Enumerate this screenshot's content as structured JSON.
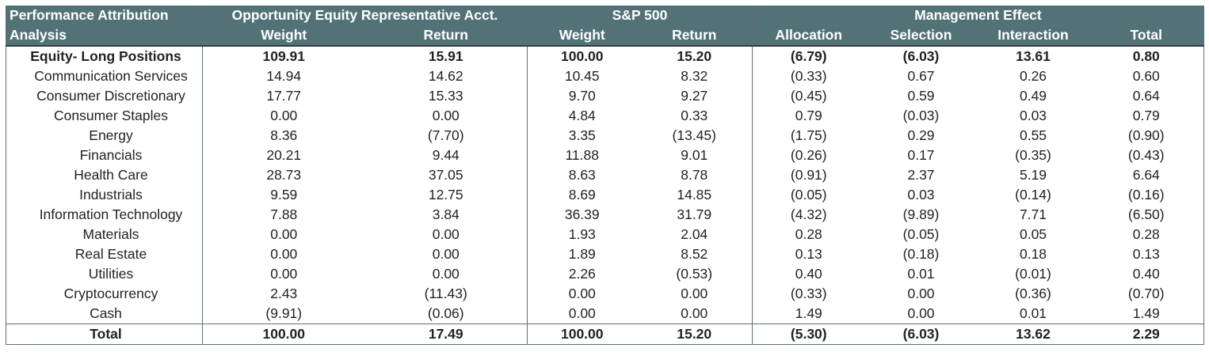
{
  "header": {
    "title_line1": "Performance Attribution",
    "title_line2": "Analysis",
    "group_account": "Opportunity Equity Representative Acct.",
    "group_index": "S&P 500",
    "group_effect": "Management Effect",
    "acct_weight": "Weight",
    "acct_return": "Return",
    "idx_weight": "Weight",
    "idx_return": "Return",
    "allocation": "Allocation",
    "selection": "Selection",
    "interaction": "Interaction",
    "total": "Total"
  },
  "rows": [
    {
      "label": "Equity- Long Positions",
      "cells": [
        "109.91",
        "15.91",
        "100.00",
        "15.20",
        "(6.79)",
        "(6.03)",
        "13.61",
        "0.80"
      ]
    },
    {
      "label": "Communication Services",
      "cells": [
        "14.94",
        "14.62",
        "10.45",
        "8.32",
        "(0.33)",
        "0.67",
        "0.26",
        "0.60"
      ]
    },
    {
      "label": "Consumer Discretionary",
      "cells": [
        "17.77",
        "15.33",
        "9.70",
        "9.27",
        "(0.45)",
        "0.59",
        "0.49",
        "0.64"
      ]
    },
    {
      "label": "Consumer Staples",
      "cells": [
        "0.00",
        "0.00",
        "4.84",
        "0.33",
        "0.79",
        "(0.03)",
        "0.03",
        "0.79"
      ]
    },
    {
      "label": "Energy",
      "cells": [
        "8.36",
        "(7.70)",
        "3.35",
        "(13.45)",
        "(1.75)",
        "0.29",
        "0.55",
        "(0.90)"
      ]
    },
    {
      "label": "Financials",
      "cells": [
        "20.21",
        "9.44",
        "11.88",
        "9.01",
        "(0.26)",
        "0.17",
        "(0.35)",
        "(0.43)"
      ]
    },
    {
      "label": "Health Care",
      "cells": [
        "28.73",
        "37.05",
        "8.63",
        "8.78",
        "(0.91)",
        "2.37",
        "5.19",
        "6.64"
      ]
    },
    {
      "label": "Industrials",
      "cells": [
        "9.59",
        "12.75",
        "8.69",
        "14.85",
        "(0.05)",
        "0.03",
        "(0.14)",
        "(0.16)"
      ]
    },
    {
      "label": "Information Technology",
      "cells": [
        "7.88",
        "3.84",
        "36.39",
        "31.79",
        "(4.32)",
        "(9.89)",
        "7.71",
        "(6.50)"
      ]
    },
    {
      "label": "Materials",
      "cells": [
        "0.00",
        "0.00",
        "1.93",
        "2.04",
        "0.28",
        "(0.05)",
        "0.05",
        "0.28"
      ]
    },
    {
      "label": "Real Estate",
      "cells": [
        "0.00",
        "0.00",
        "1.89",
        "8.52",
        "0.13",
        "(0.18)",
        "0.18",
        "0.13"
      ]
    },
    {
      "label": "Utilities",
      "cells": [
        "0.00",
        "0.00",
        "2.26",
        "(0.53)",
        "0.40",
        "0.01",
        "(0.01)",
        "0.40"
      ]
    },
    {
      "label": "Cryptocurrency",
      "cells": [
        "2.43",
        "(11.43)",
        "0.00",
        "0.00",
        "(0.33)",
        "0.00",
        "(0.36)",
        "(0.70)"
      ]
    },
    {
      "label": "Cash",
      "cells": [
        "(9.91)",
        "(0.06)",
        "0.00",
        "0.00",
        "1.49",
        "0.00",
        "0.01",
        "1.49"
      ]
    },
    {
      "label": "Total",
      "cells": [
        "100.00",
        "17.49",
        "100.00",
        "15.20",
        "(5.30)",
        "(6.03)",
        "13.62",
        "2.29"
      ]
    }
  ],
  "colors": {
    "header_bg": "#537277",
    "header_text": "#ffffff",
    "border": "#5f6f72"
  }
}
